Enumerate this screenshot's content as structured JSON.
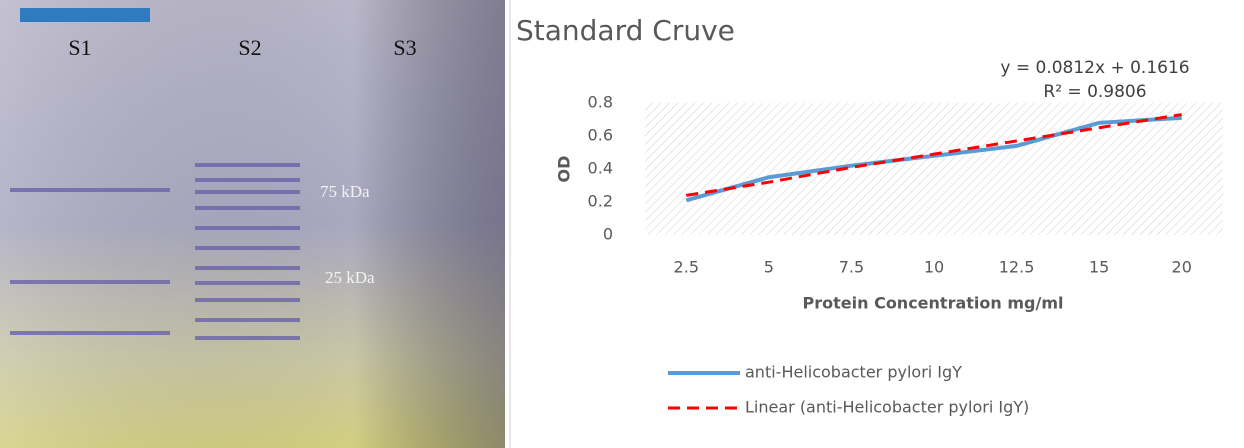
{
  "gel": {
    "lanes": [
      "S1",
      "S2",
      "S3"
    ],
    "markers": [
      "75 kDa",
      "25 kDa"
    ]
  },
  "chart_data": {
    "type": "line",
    "title": "Standard Cruve",
    "annotations": [
      "y = 0.0812x + 0.1616",
      "R² = 0.9806"
    ],
    "x_label": "Protein Concentration mg/ml",
    "y_label": "OD",
    "categories": [
      "2.5",
      "5",
      "7.5",
      "10",
      "12.5",
      "15",
      "20"
    ],
    "series": [
      {
        "name": "anti-Helicobacter pylori IgY",
        "color": "#5b9bd5",
        "dashed": false,
        "values": [
          0.21,
          0.35,
          0.42,
          0.48,
          0.54,
          0.68,
          0.71
        ]
      },
      {
        "name": "Linear (anti-Helicobacter pylori IgY)",
        "color": "#ff0000",
        "dashed": true,
        "values": [
          0.24,
          0.32,
          0.41,
          0.49,
          0.57,
          0.65,
          0.73
        ]
      }
    ],
    "ylim": [
      0,
      0.8
    ],
    "yticks": [
      0,
      0.2,
      0.4,
      0.6,
      0.8
    ],
    "grid": false,
    "legend": "bottom"
  }
}
